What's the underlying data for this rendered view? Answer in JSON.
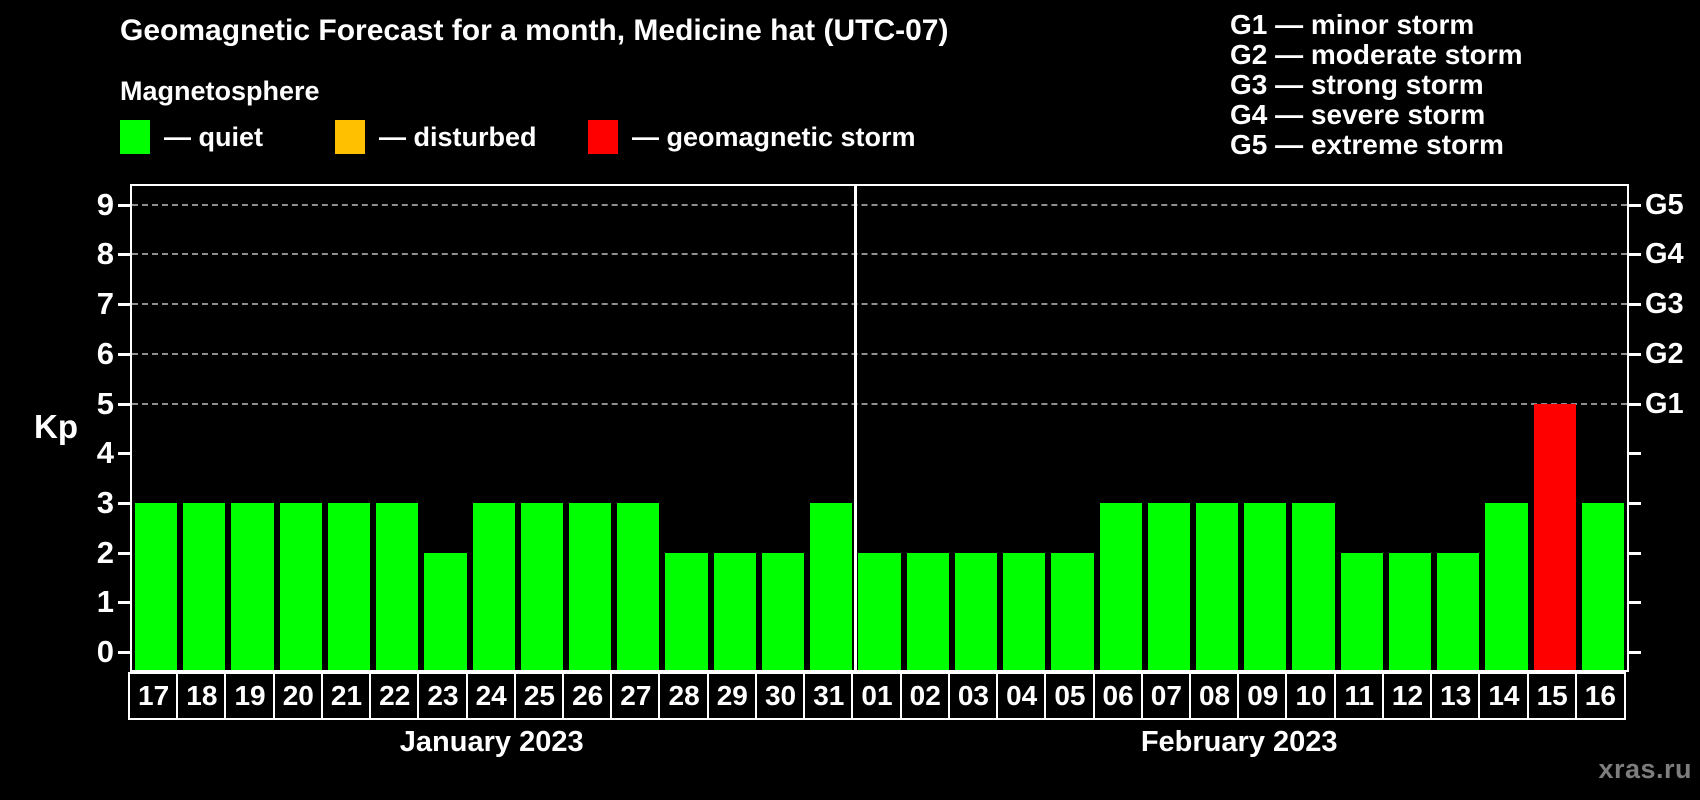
{
  "title": "Geomagnetic Forecast for a month, Medicine hat (UTC-07)",
  "watermark": "xras.ru",
  "colors": {
    "background": "#000000",
    "text": "#ffffff",
    "grid": "#8f8f8f",
    "axis": "#ffffff",
    "watermark": "#7d7d7d"
  },
  "state_colors": {
    "quiet": "#00ff00",
    "disturbed": "#ffc000",
    "storm": "#ff0000"
  },
  "legend": {
    "title": "Magnetosphere",
    "items": [
      {
        "state": "quiet",
        "label": "— quiet",
        "color": "#00ff00"
      },
      {
        "state": "disturbed",
        "label": "— disturbed",
        "color": "#ffc000"
      },
      {
        "state": "storm",
        "label": "— geomagnetic storm",
        "color": "#ff0000"
      }
    ]
  },
  "storm_scale": [
    "G1 — minor storm",
    "G2 — moderate storm",
    "G3 — strong storm",
    "G4 — severe storm",
    "G5 — extreme storm"
  ],
  "chart_data": {
    "type": "bar",
    "title": "Geomagnetic Forecast for a month, Medicine hat (UTC-07)",
    "ylabel": "Kp",
    "xlabel": "",
    "ylim": [
      0,
      9
    ],
    "y_ticks": [
      "0",
      "1",
      "2",
      "3",
      "4",
      "5",
      "6",
      "7",
      "8",
      "9"
    ],
    "grid_dashed_at_kp": [
      5,
      6,
      7,
      8,
      9
    ],
    "right_axis_labels": [
      {
        "kp": 5,
        "label": "G1"
      },
      {
        "kp": 6,
        "label": "G2"
      },
      {
        "kp": 7,
        "label": "G3"
      },
      {
        "kp": 8,
        "label": "G4"
      },
      {
        "kp": 9,
        "label": "G5"
      }
    ],
    "legend_position": "top-left",
    "months": [
      {
        "label": "January 2023",
        "categories": [
          "17",
          "18",
          "19",
          "20",
          "21",
          "22",
          "23",
          "24",
          "25",
          "26",
          "27",
          "28",
          "29",
          "30",
          "31"
        ],
        "values": [
          3,
          3,
          3,
          3,
          3,
          3,
          2,
          3,
          3,
          3,
          3,
          2,
          2,
          2,
          3
        ],
        "states": [
          "quiet",
          "quiet",
          "quiet",
          "quiet",
          "quiet",
          "quiet",
          "quiet",
          "quiet",
          "quiet",
          "quiet",
          "quiet",
          "quiet",
          "quiet",
          "quiet",
          "quiet"
        ]
      },
      {
        "label": "February 2023",
        "categories": [
          "01",
          "02",
          "03",
          "04",
          "05",
          "06",
          "07",
          "08",
          "09",
          "10",
          "11",
          "12",
          "13",
          "14",
          "15",
          "16"
        ],
        "values": [
          2,
          2,
          2,
          2,
          2,
          3,
          3,
          3,
          3,
          3,
          2,
          2,
          2,
          3,
          5,
          3
        ],
        "states": [
          "quiet",
          "quiet",
          "quiet",
          "quiet",
          "quiet",
          "quiet",
          "quiet",
          "quiet",
          "quiet",
          "quiet",
          "quiet",
          "quiet",
          "quiet",
          "quiet",
          "storm",
          "quiet"
        ]
      }
    ]
  }
}
